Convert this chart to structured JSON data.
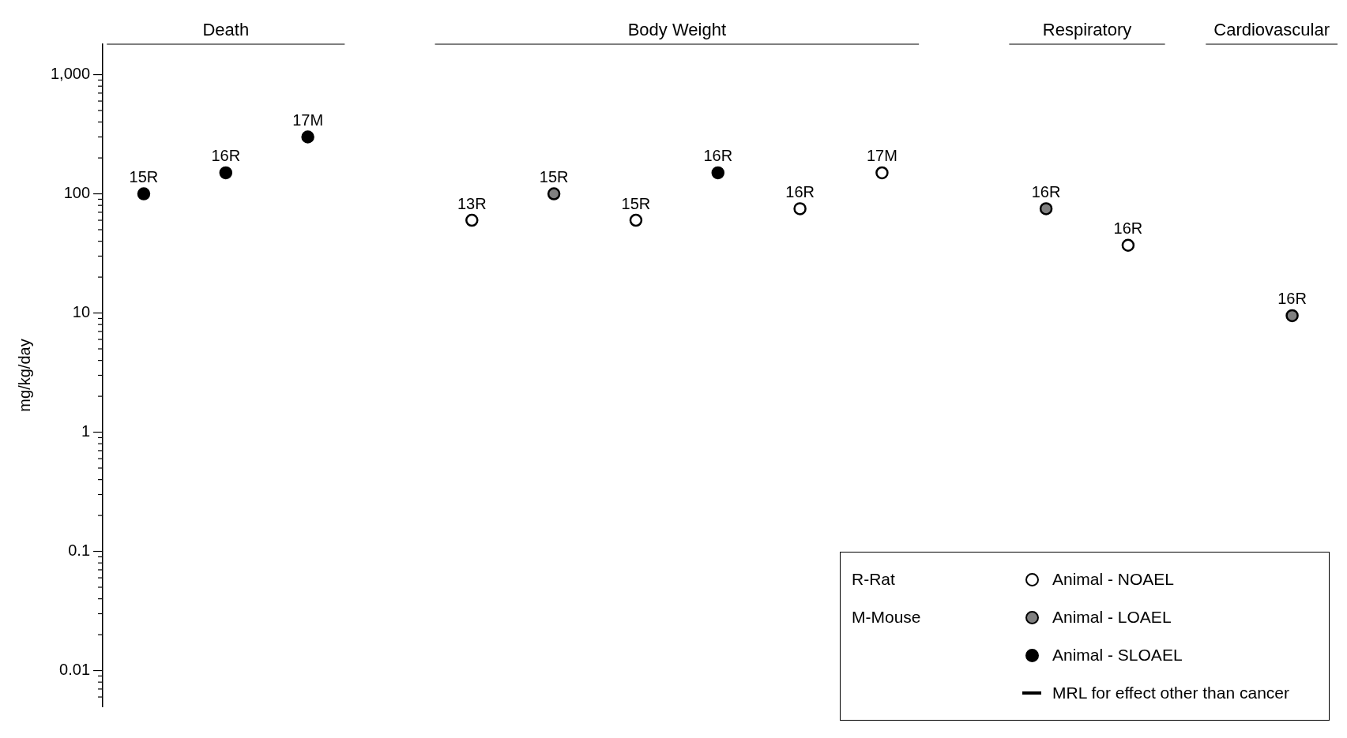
{
  "chart_data": {
    "type": "scatter",
    "ylabel": "mg/kg/day",
    "log": true,
    "grid": false,
    "legend": "bottom right",
    "marker": "circle",
    "ylim": [
      0.005,
      1800
    ],
    "categories": [
      "15R",
      "16R",
      "17M",
      null,
      "13R",
      "15R",
      "15R",
      "16R",
      "16R",
      "17M",
      null,
      "16R",
      "16R",
      null,
      "16R"
    ],
    "yticks": [
      {
        "value": 0.006,
        "label": null
      },
      {
        "value": 0.007,
        "label": null
      },
      {
        "value": 0.008,
        "label": null
      },
      {
        "value": 0.009,
        "label": null
      },
      0.01,
      {
        "value": 0.02,
        "label": null
      },
      {
        "value": 0.03,
        "label": null
      },
      {
        "value": 0.04,
        "label": null
      },
      {
        "value": 0.05,
        "label": null
      },
      {
        "value": 0.06,
        "label": null
      },
      {
        "value": 0.07,
        "label": null
      },
      {
        "value": 0.08,
        "label": null
      },
      {
        "value": 0.09,
        "label": null
      },
      0.1,
      {
        "value": 0.2,
        "label": null
      },
      {
        "value": 0.3,
        "label": null
      },
      {
        "value": 0.4,
        "label": null
      },
      {
        "value": 0.5,
        "label": null
      },
      {
        "value": 0.6,
        "label": null
      },
      {
        "value": 0.7,
        "label": null
      },
      {
        "value": 0.8,
        "label": null
      },
      {
        "value": 0.9,
        "label": null
      },
      1,
      {
        "value": 2,
        "label": null
      },
      {
        "value": 3,
        "label": null
      },
      {
        "value": 4,
        "label": null
      },
      {
        "value": 5,
        "label": null
      },
      {
        "value": 6,
        "label": null
      },
      {
        "value": 7,
        "label": null
      },
      {
        "value": 8,
        "label": null
      },
      {
        "value": 9,
        "label": null
      },
      10,
      {
        "value": 20,
        "label": null
      },
      {
        "value": 30,
        "label": null
      },
      {
        "value": 40,
        "label": null
      },
      {
        "value": 50,
        "label": null
      },
      {
        "value": 60,
        "label": null
      },
      {
        "value": 70,
        "label": null
      },
      {
        "value": 80,
        "label": null
      },
      {
        "value": 90,
        "label": null
      },
      100,
      {
        "value": 200,
        "label": null
      },
      {
        "value": 300,
        "label": null
      },
      {
        "value": 400,
        "label": null
      },
      {
        "value": 500,
        "label": null
      },
      {
        "value": 600,
        "label": null
      },
      {
        "value": 700,
        "label": null
      },
      {
        "value": 800,
        "label": null
      },
      {
        "value": 900,
        "label": null
      },
      {
        "value": 1000,
        "label": "1,000"
      }
    ],
    "series": [
      {
        "name": "Animal - NOAEL",
        "color": "#ffffff",
        "values": [
          null,
          null,
          null,
          null,
          60,
          null,
          60,
          null,
          75,
          150,
          null,
          null,
          37,
          null,
          null
        ]
      },
      {
        "name": "Animal - LOAEL",
        "color": "#808080",
        "values": [
          null,
          null,
          null,
          null,
          null,
          100,
          null,
          null,
          null,
          null,
          null,
          75,
          null,
          null,
          9.5
        ]
      },
      {
        "name": "Animal - SLOAEL",
        "color": "#000000",
        "values": [
          100,
          150,
          300,
          null,
          null,
          null,
          null,
          150,
          null,
          null,
          null,
          null,
          null,
          null,
          null
        ]
      },
      {
        "name": "MRL for effect other than cancer",
        "type": "line",
        "color": "#000000",
        "values": [
          null,
          null,
          null,
          null,
          null,
          null,
          null,
          null,
          null,
          null,
          null,
          null,
          null,
          null,
          null
        ]
      }
    ],
    "annotations": [
      "Death",
      "Body Weight",
      "Respiratory",
      "Cardiovascular",
      "R-Rat",
      "M-Mouse"
    ]
  }
}
